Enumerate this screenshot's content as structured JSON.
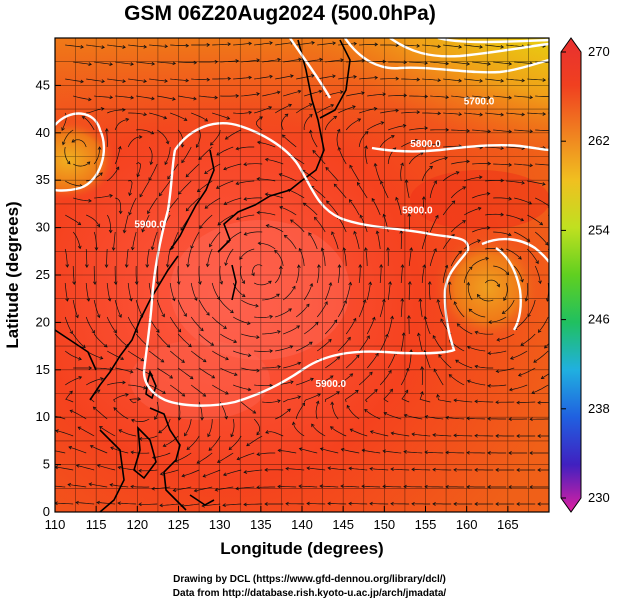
{
  "title": "GSM 06Z20Aug2024 (500.0hPa)",
  "x_axis": {
    "label": "Longitude (degrees)",
    "min": 110,
    "max": 170,
    "ticks": [
      "110",
      "115",
      "120",
      "125",
      "130",
      "135",
      "140",
      "145",
      "150",
      "155",
      "160",
      "165"
    ]
  },
  "y_axis": {
    "label": "Latitude (degrees)",
    "min": 0,
    "max": 50,
    "ticks": [
      "0",
      "5",
      "10",
      "15",
      "20",
      "25",
      "30",
      "35",
      "40",
      "45"
    ]
  },
  "colorbar": {
    "min": 230,
    "max": 270,
    "ticks": [
      "230",
      "238",
      "246",
      "254",
      "262",
      "270"
    ],
    "colors": [
      "#e020a0",
      "#4020c0",
      "#2060e0",
      "#20b0e0",
      "#20c060",
      "#60d020",
      "#c0e020",
      "#f0c020",
      "#f08020",
      "#f04020",
      "#e83030"
    ]
  },
  "contours": [
    {
      "label": "5900.0",
      "lon": 143.5,
      "lat": 13.2
    },
    {
      "label": "5900.0",
      "lon": 154.0,
      "lat": 31.5
    },
    {
      "label": "5900.0",
      "lon": 121.5,
      "lat": 30.0
    },
    {
      "label": "5800.0",
      "lon": 155.0,
      "lat": 38.5
    },
    {
      "label": "5700.0",
      "lon": 161.5,
      "lat": 43.0
    }
  ],
  "credits": {
    "line1": "Drawing by DCL (https://www.gfd-dennou.org/library/dcl/)",
    "line2": "Data from http://database.rish.kyoto-u.ac.jp/arch/jmadata/"
  }
}
